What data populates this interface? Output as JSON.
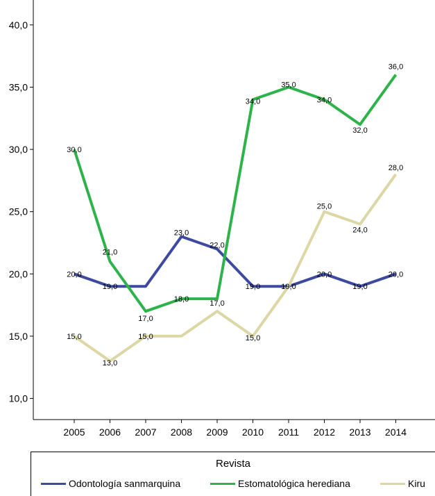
{
  "chart_data": {
    "type": "line",
    "categories": [
      "2005",
      "2006",
      "2007",
      "2008",
      "2009",
      "2010",
      "2011",
      "2012",
      "2013",
      "2014"
    ],
    "ylim": [
      8.3,
      42
    ],
    "y_ticks": [
      10,
      15,
      20,
      25,
      30,
      35,
      40
    ],
    "y_tick_labels": [
      "10,0",
      "15,0",
      "20,0",
      "25,0",
      "30,0",
      "35,0",
      "40,0"
    ],
    "grid": false,
    "legend_position": "bottom",
    "legend_title": "Revista",
    "series": [
      {
        "name": "Odontología sanmarquina",
        "color": "#3d4aa0",
        "values": [
          20,
          19,
          19,
          23,
          22,
          19,
          19,
          20,
          19,
          20
        ],
        "labels": [
          "20,0",
          "19,0",
          "",
          "23,0",
          "22,0",
          "19,0",
          "19,0",
          "20,0",
          "19,0",
          "20,0"
        ]
      },
      {
        "name": "Estomatológica herediana",
        "color": "#2eb34a",
        "values": [
          30,
          21,
          17,
          18,
          18,
          34,
          35,
          34,
          32,
          36
        ],
        "labels": [
          "30,0",
          "21,0",
          "17,0",
          "18,0",
          "",
          "34,0",
          "35,0",
          "34,0",
          "32,0",
          "36,0"
        ]
      },
      {
        "name": "Kiru",
        "color": "#ddd7a6",
        "values": [
          15,
          13,
          15,
          15,
          17,
          15,
          19,
          25,
          24,
          28
        ],
        "labels": [
          "15,0",
          "13,0",
          "15,0",
          "",
          "17,0",
          "15,0",
          "",
          "25,0",
          "24,0",
          "28,0"
        ]
      }
    ]
  }
}
